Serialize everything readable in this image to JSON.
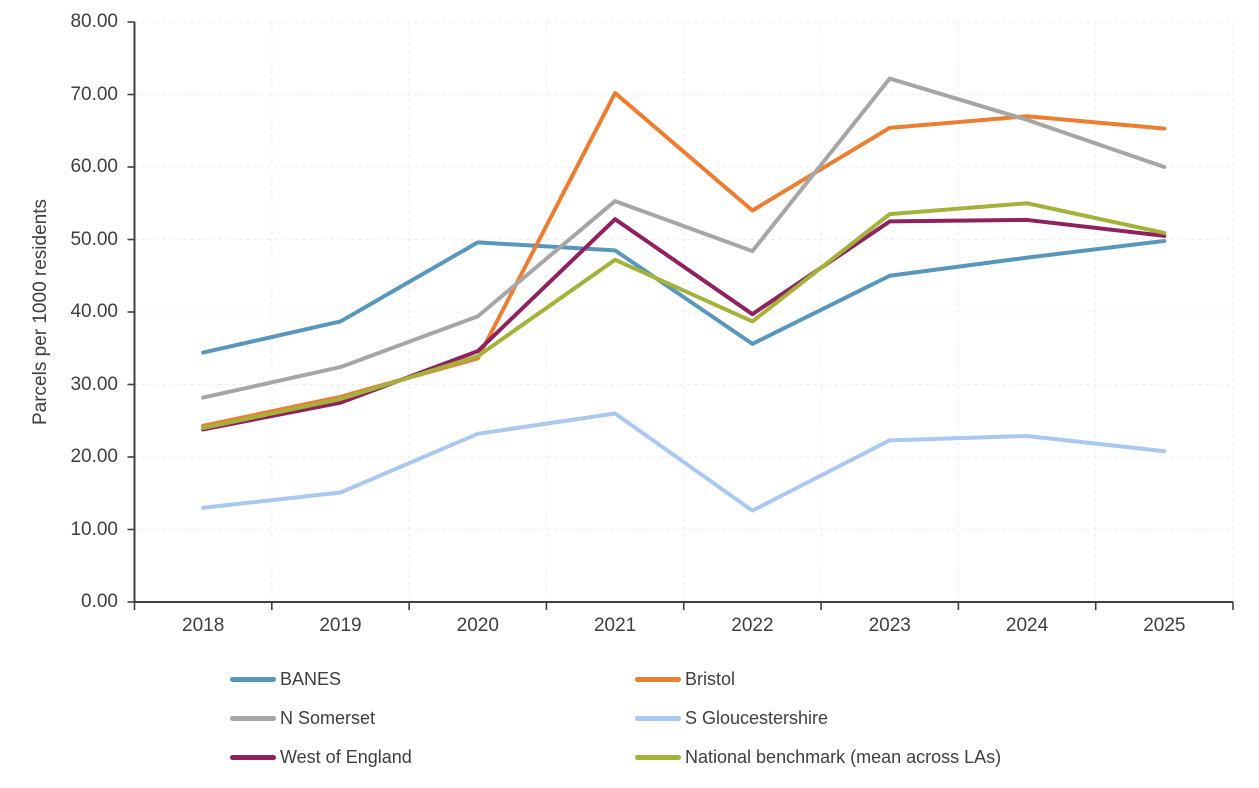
{
  "chart_data": {
    "type": "line",
    "title": "",
    "xlabel": "",
    "ylabel": "Parcels per 1000 residents",
    "ylim": [
      0,
      80
    ],
    "y_tick_step": 10,
    "y_tick_labels": [
      "0.00",
      "10.00",
      "20.00",
      "30.00",
      "40.00",
      "50.00",
      "60.00",
      "70.00",
      "80.00"
    ],
    "grid": "both-dashed",
    "legend_position": "bottom-two-columns",
    "categories": [
      "2018",
      "2019",
      "2020",
      "2021",
      "2022",
      "2023",
      "2024",
      "2025"
    ],
    "series": [
      {
        "name": "BANES",
        "color": "#5897BB",
        "values": [
          34.4,
          38.7,
          49.6,
          48.5,
          35.6,
          45.0,
          47.5,
          49.8
        ]
      },
      {
        "name": "Bristol",
        "color": "#EC7D31",
        "values": [
          24.3,
          28.3,
          33.6,
          70.2,
          54.0,
          65.4,
          67.0,
          65.3
        ]
      },
      {
        "name": "N Somerset",
        "color": "#A6A6A6",
        "values": [
          28.2,
          32.4,
          39.4,
          55.3,
          48.4,
          72.2,
          66.5,
          60.0
        ]
      },
      {
        "name": "S Gloucestershire",
        "color": "#ABC8F0",
        "values": [
          13.0,
          15.1,
          23.2,
          26.0,
          12.6,
          22.3,
          22.9,
          20.8
        ]
      },
      {
        "name": "West of England",
        "color": "#8E215E",
        "values": [
          23.8,
          27.5,
          34.6,
          52.8,
          39.7,
          52.5,
          52.7,
          50.5
        ]
      },
      {
        "name": "National benchmark (mean across LAs)",
        "color": "#A4B23C",
        "values": [
          24.0,
          28.0,
          33.9,
          47.2,
          38.7,
          53.5,
          55.0,
          50.9
        ]
      }
    ],
    "colors": {
      "axis": "#404040",
      "gridline": "#EBEBEB",
      "text": "#3f3f3f",
      "background": "#ffffff"
    }
  }
}
